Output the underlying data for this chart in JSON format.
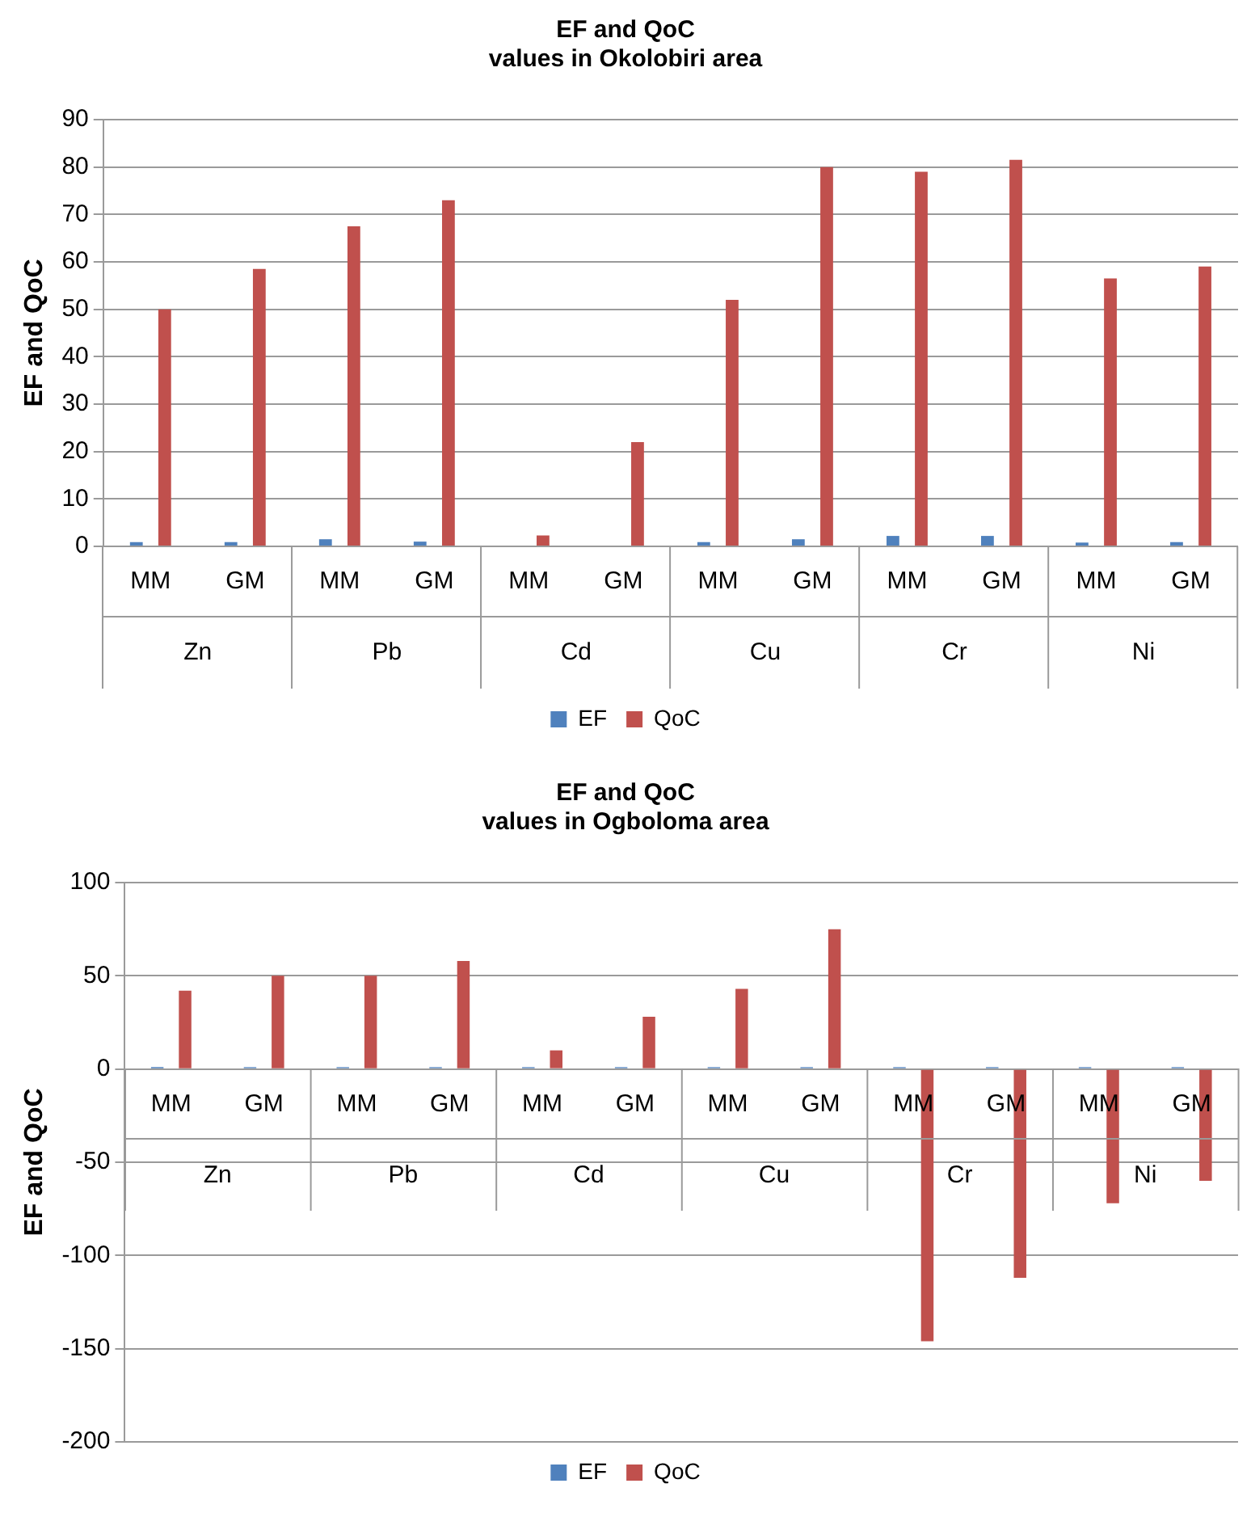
{
  "chart_data": [
    {
      "type": "bar",
      "title": "EF and QoC\nvalues in Okolobiri area",
      "ylabel": "EF and QoC",
      "categories": [
        "MM",
        "GM",
        "MM",
        "GM",
        "MM",
        "GM",
        "MM",
        "GM",
        "MM",
        "GM",
        "MM",
        "GM"
      ],
      "annotations": [
        "Zn",
        "Pb",
        "Cd",
        "Cu",
        "Cr",
        "Ni"
      ],
      "series": [
        {
          "name": "EF",
          "color": "#4f81bd",
          "values": [
            0.9,
            0.9,
            1.5,
            1.0,
            0,
            0,
            0.9,
            1.5,
            2.2,
            2.2,
            0.8,
            0.9
          ]
        },
        {
          "name": "QoC",
          "color": "#c0504d",
          "values": [
            50,
            58.5,
            67.5,
            73,
            2.3,
            22,
            52,
            80,
            79,
            81.5,
            56.5,
            59
          ]
        }
      ],
      "ylim": [
        0,
        90
      ],
      "yticks": [
        0,
        10,
        20,
        30,
        40,
        50,
        60,
        70,
        80,
        90
      ],
      "grid": "y",
      "legend": "bottom"
    },
    {
      "type": "bar",
      "title": "EF and QoC\nvalues in Ogboloma area",
      "ylabel": "EF and QoC",
      "categories": [
        "MM",
        "GM",
        "MM",
        "GM",
        "MM",
        "GM",
        "MM",
        "GM",
        "MM",
        "GM",
        "MM",
        "GM"
      ],
      "annotations": [
        "Zn",
        "Pb",
        "Cd",
        "Cu",
        "Cr",
        "Ni"
      ],
      "series": [
        {
          "name": "EF",
          "color": "#4f81bd",
          "values": [
            1,
            1,
            1,
            1,
            1,
            1,
            1,
            1,
            1,
            1,
            1,
            1
          ]
        },
        {
          "name": "QoC",
          "color": "#c0504d",
          "values": [
            42,
            50,
            50,
            58,
            10,
            28,
            43,
            75,
            -146,
            -112,
            -72,
            -60
          ]
        }
      ],
      "ylim": [
        -200,
        100
      ],
      "yticks": [
        -200,
        -150,
        -100,
        -50,
        0,
        50,
        100
      ],
      "grid": "y",
      "legend": "bottom"
    }
  ]
}
